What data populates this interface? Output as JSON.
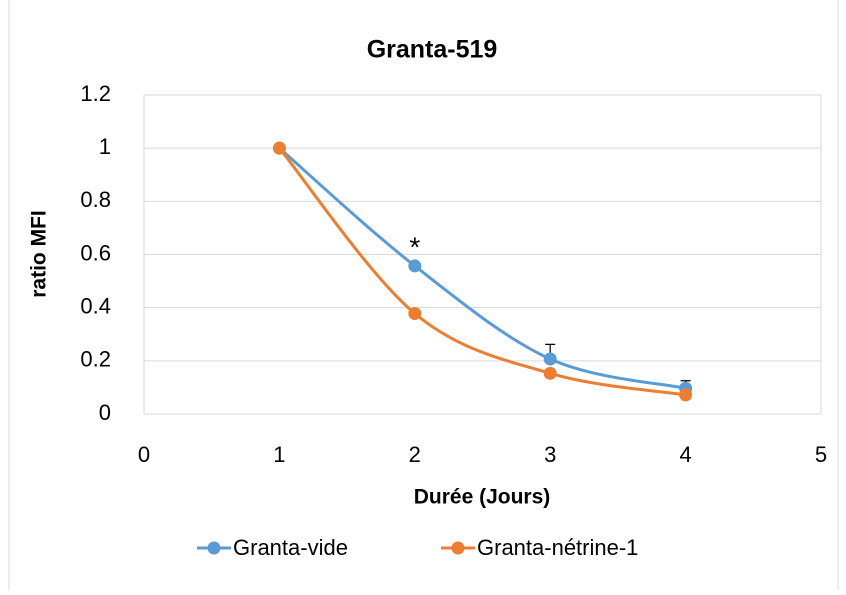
{
  "chart_data": {
    "type": "line",
    "title": "Granta-519",
    "x_label": "Durée (Jours)",
    "y_label": "ratio MFI",
    "annotations": [
      {
        "text": "*",
        "x": 2,
        "y": 0.65
      }
    ],
    "xlim": [
      0,
      5
    ],
    "xticks": [
      0,
      1,
      2,
      3,
      4,
      5
    ],
    "ylim": [
      0,
      1.2
    ],
    "yticks": [
      0,
      0.2,
      0.4,
      0.6,
      0.8,
      1,
      1.2
    ],
    "grid": true,
    "legend": "bottom",
    "smooth": true,
    "x": [
      1,
      2,
      3,
      4
    ],
    "series": [
      {
        "name": "Granta-vide",
        "color": "#5b9bd5",
        "values": [
          1,
          0.557,
          0.207,
          0.097
        ],
        "errors": [
          0,
          0.01,
          0.055,
          0.028
        ]
      },
      {
        "name": "Granta-nétrine-1",
        "color": "#ed7d31",
        "values": [
          1,
          0.378,
          0.153,
          0.072
        ]
      }
    ]
  }
}
